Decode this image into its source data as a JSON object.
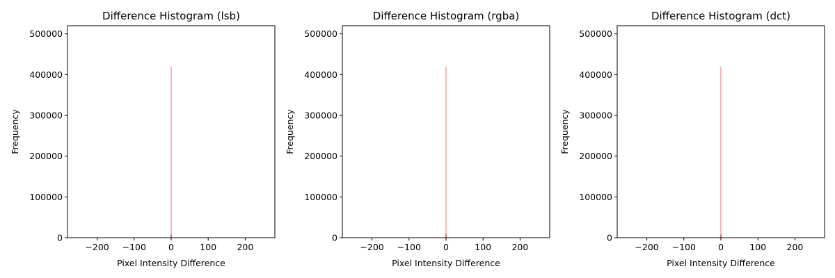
{
  "chart_data": [
    {
      "type": "bar",
      "title": "Difference Histogram (lsb)",
      "xlabel": "Pixel Intensity Difference",
      "ylabel": "Frequency",
      "xlim": [
        -280,
        280
      ],
      "ylim": [
        0,
        520000
      ],
      "xticks": [
        -200,
        -100,
        0,
        100,
        200
      ],
      "xtick_labels": [
        "−200",
        "−100",
        "0",
        "100",
        "200"
      ],
      "yticks": [
        0,
        100000,
        200000,
        300000,
        400000,
        500000
      ],
      "ytick_labels": [
        "0",
        "100000",
        "200000",
        "300000",
        "400000",
        "500000"
      ],
      "color": "#e05a5a",
      "bars": [
        {
          "x": -1,
          "value": 8000
        },
        {
          "x": 0,
          "value": 420000
        },
        {
          "x": 1,
          "value": 8000
        }
      ]
    },
    {
      "type": "bar",
      "title": "Difference Histogram (rgba)",
      "xlabel": "Pixel Intensity Difference",
      "ylabel": "Frequency",
      "xlim": [
        -280,
        280
      ],
      "ylim": [
        0,
        520000
      ],
      "xticks": [
        -200,
        -100,
        0,
        100,
        200
      ],
      "xtick_labels": [
        "−200",
        "−100",
        "0",
        "100",
        "200"
      ],
      "yticks": [
        0,
        100000,
        200000,
        300000,
        400000,
        500000
      ],
      "ytick_labels": [
        "0",
        "100000",
        "200000",
        "300000",
        "400000",
        "500000"
      ],
      "color": "#e05a5a",
      "bars": [
        {
          "x": -1,
          "value": 8000
        },
        {
          "x": 0,
          "value": 420000
        },
        {
          "x": 1,
          "value": 8000
        }
      ]
    },
    {
      "type": "bar",
      "title": "Difference Histogram (dct)",
      "xlabel": "Pixel Intensity Difference",
      "ylabel": "Frequency",
      "xlim": [
        -280,
        280
      ],
      "ylim": [
        0,
        520000
      ],
      "xticks": [
        -200,
        -100,
        0,
        100,
        200
      ],
      "xtick_labels": [
        "−200",
        "−100",
        "0",
        "100",
        "200"
      ],
      "yticks": [
        0,
        100000,
        200000,
        300000,
        400000,
        500000
      ],
      "ytick_labels": [
        "0",
        "100000",
        "200000",
        "300000",
        "400000",
        "500000"
      ],
      "color": "#e05a5a",
      "bars": [
        {
          "x": -1,
          "value": 8000
        },
        {
          "x": 0,
          "value": 420000
        },
        {
          "x": 1,
          "value": 8000
        }
      ]
    }
  ]
}
